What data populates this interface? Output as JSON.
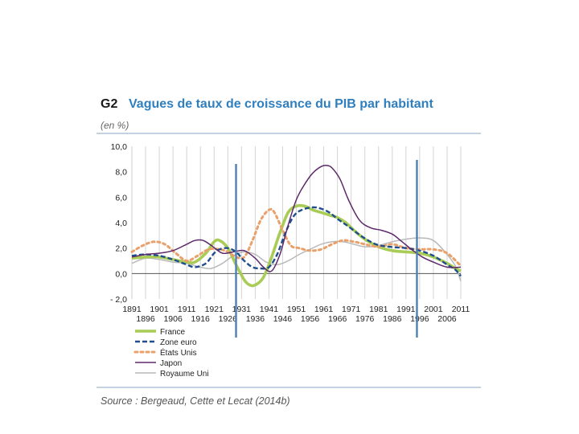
{
  "header": {
    "code": "G2",
    "title": "Vagues de taux de croissance du PIB par habitant",
    "unit": "(en %)"
  },
  "footer": {
    "source": "Source : Bergeaud, Cette et Lecat (2014b)"
  },
  "chart_data": {
    "type": "line",
    "title": "Vagues de taux de croissance du PIB par habitant",
    "ylabel": "(en %)",
    "xlabel": "",
    "xlim": [
      1891,
      2011
    ],
    "ylim": [
      -2,
      10
    ],
    "y_ticks": [
      10,
      8,
      6,
      4,
      2,
      0,
      -2
    ],
    "y_tick_labels": [
      "10,0",
      "8,0",
      "6,0",
      "4,0",
      "2,0",
      "0,0",
      "- 2,0"
    ],
    "x_ticks_top": [
      1891,
      1901,
      1911,
      1921,
      1931,
      1941,
      1951,
      1961,
      1971,
      1981,
      1991,
      2001,
      2011
    ],
    "x_ticks_bottom": [
      1896,
      1906,
      1916,
      1926,
      1936,
      1946,
      1956,
      1966,
      1976,
      1986,
      1996,
      2006
    ],
    "grid": "vertical",
    "legend_position": "bottom-left",
    "marker_lines": [
      1929,
      1995
    ],
    "series": [
      {
        "name": "France",
        "style": "thick-solid",
        "color": "#a9cc56",
        "x": [
          1891,
          1896,
          1901,
          1906,
          1911,
          1914,
          1918,
          1921,
          1923,
          1926,
          1929,
          1932,
          1934,
          1936,
          1939,
          1942,
          1945,
          1948,
          1951,
          1954,
          1957,
          1960,
          1963,
          1966,
          1969,
          1972,
          1976,
          1981,
          1986,
          1991,
          1996,
          2001,
          2006,
          2009,
          2011
        ],
        "y": [
          1.2,
          1.3,
          1.3,
          1.1,
          0.9,
          0.9,
          1.6,
          2.5,
          2.6,
          2.0,
          0.7,
          -0.5,
          -0.9,
          -0.9,
          -0.3,
          1.3,
          3.2,
          4.8,
          5.3,
          5.3,
          5.0,
          4.8,
          4.6,
          4.4,
          4.0,
          3.4,
          2.7,
          2.1,
          1.8,
          1.7,
          1.6,
          1.3,
          0.8,
          0.4,
          0.2
        ]
      },
      {
        "name": "Zone euro",
        "style": "dashed",
        "color": "#1f4e8c",
        "x": [
          1891,
          1896,
          1901,
          1906,
          1911,
          1914,
          1918,
          1921,
          1923,
          1926,
          1929,
          1932,
          1935,
          1938,
          1941,
          1944,
          1947,
          1950,
          1953,
          1957,
          1960,
          1963,
          1966,
          1970,
          1975,
          1980,
          1985,
          1991,
          1996,
          2001,
          2006,
          2009,
          2011
        ],
        "y": [
          1.4,
          1.5,
          1.4,
          1.1,
          0.7,
          0.5,
          0.8,
          1.6,
          1.9,
          2.0,
          1.7,
          1.0,
          0.5,
          0.4,
          0.5,
          1.5,
          3.2,
          4.5,
          5.0,
          5.2,
          5.1,
          4.8,
          4.3,
          3.7,
          2.9,
          2.3,
          2.1,
          2.0,
          1.8,
          1.4,
          0.7,
          0.3,
          -0.2
        ]
      },
      {
        "name": "États Unis",
        "style": "dotted",
        "color": "#e9a06a",
        "x": [
          1891,
          1895,
          1899,
          1903,
          1907,
          1911,
          1915,
          1919,
          1923,
          1926,
          1929,
          1932,
          1935,
          1938,
          1941,
          1943,
          1946,
          1949,
          1952,
          1956,
          1960,
          1964,
          1968,
          1972,
          1976,
          1981,
          1986,
          1991,
          1996,
          2001,
          2006,
          2011
        ],
        "y": [
          1.7,
          2.2,
          2.5,
          2.3,
          1.6,
          1.0,
          1.4,
          1.9,
          1.9,
          1.7,
          1.3,
          1.3,
          2.6,
          4.2,
          5.0,
          4.8,
          3.4,
          2.2,
          2.0,
          1.8,
          1.9,
          2.3,
          2.6,
          2.5,
          2.3,
          2.1,
          2.3,
          2.0,
          1.9,
          1.9,
          1.6,
          0.6
        ]
      },
      {
        "name": "Japon",
        "style": "solid",
        "color": "#5c2a6b",
        "x": [
          1891,
          1896,
          1901,
          1906,
          1911,
          1914,
          1917,
          1920,
          1924,
          1928,
          1932,
          1936,
          1939,
          1942,
          1945,
          1948,
          1951,
          1954,
          1957,
          1960,
          1962,
          1964,
          1967,
          1970,
          1974,
          1978,
          1982,
          1986,
          1989,
          1993,
          1997,
          2001,
          2006,
          2011
        ],
        "y": [
          1.3,
          1.5,
          1.6,
          1.8,
          2.3,
          2.6,
          2.6,
          2.2,
          1.6,
          1.7,
          1.8,
          1.2,
          0.5,
          0.2,
          1.5,
          3.8,
          5.8,
          7.0,
          7.9,
          8.4,
          8.5,
          8.3,
          7.4,
          5.8,
          4.2,
          3.6,
          3.4,
          3.1,
          2.6,
          1.9,
          1.3,
          0.9,
          0.5,
          0.5
        ]
      },
      {
        "name": "Royaume Uni",
        "style": "solid",
        "color": "#b9b9b9",
        "x": [
          1891,
          1896,
          1901,
          1906,
          1911,
          1916,
          1920,
          1924,
          1928,
          1932,
          1936,
          1940,
          1944,
          1948,
          1952,
          1956,
          1960,
          1964,
          1968,
          1972,
          1976,
          1981,
          1986,
          1991,
          1996,
          2001,
          2006,
          2009,
          2011
        ],
        "y": [
          0.8,
          1.2,
          1.1,
          0.9,
          0.8,
          0.5,
          0.4,
          0.8,
          1.4,
          1.7,
          1.5,
          0.9,
          0.7,
          1.0,
          1.5,
          1.9,
          2.3,
          2.5,
          2.5,
          2.3,
          2.1,
          2.2,
          2.5,
          2.7,
          2.8,
          2.6,
          1.5,
          0.6,
          -0.6
        ]
      }
    ]
  }
}
